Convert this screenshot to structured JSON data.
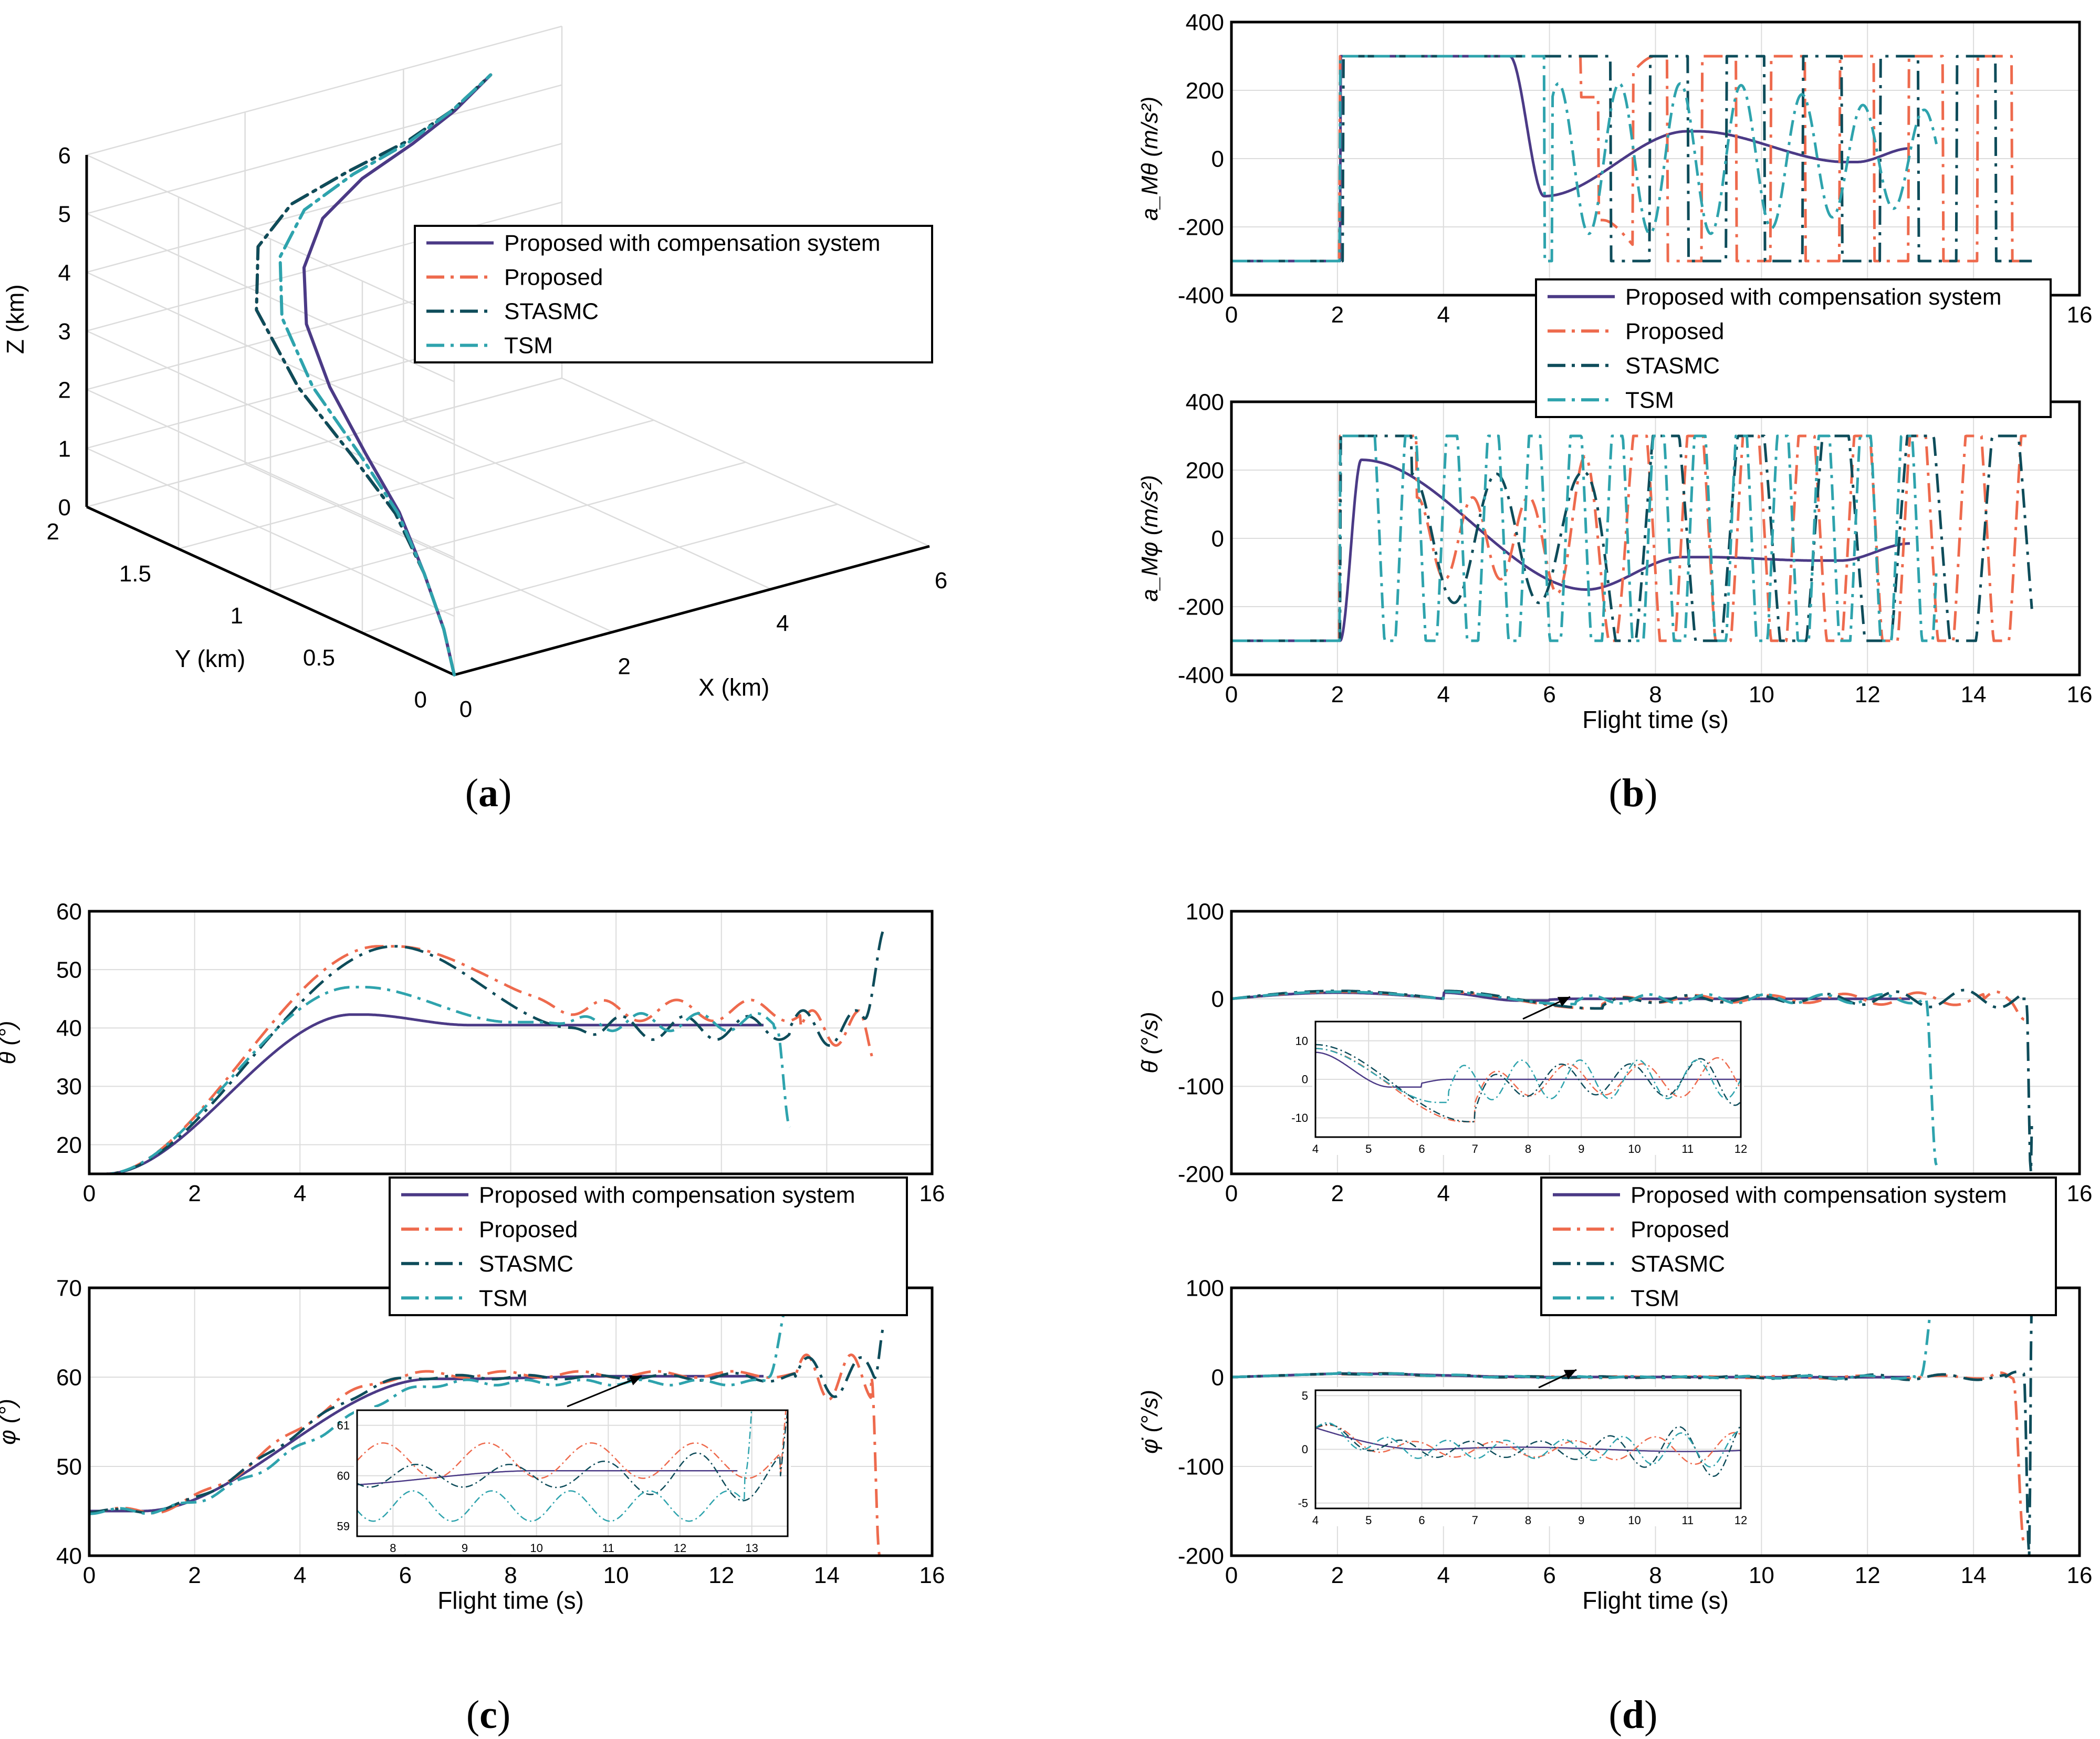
{
  "colors": {
    "comp": "#4b3a86",
    "proposed": "#ee6a4d",
    "stasmc": "#0e4c5a",
    "tsm": "#2ea3ad",
    "axis": "#000000",
    "grid": "#dcdcdc",
    "background": "#ffffff"
  },
  "legend": {
    "entries": [
      {
        "label": "Proposed with compensation system",
        "color": "#4b3a86",
        "dash": "solid"
      },
      {
        "label": "Proposed",
        "color": "#ee6a4d",
        "dash": "dashdot"
      },
      {
        "label": "STASMC",
        "color": "#0e4c5a",
        "dash": "dashdot"
      },
      {
        "label": "TSM",
        "color": "#2ea3ad",
        "dash": "dashdot"
      }
    ]
  },
  "captions": {
    "a": "a",
    "b": "b",
    "c": "c",
    "d": "d"
  },
  "chart_data": [
    {
      "id": "a",
      "type": "line3d",
      "title": "",
      "xlabel": "X (km)",
      "ylabel": "Y (km)",
      "zlabel": "Z (km)",
      "xlim": [
        0,
        6
      ],
      "ylim": [
        0,
        2
      ],
      "zlim": [
        0,
        6
      ],
      "xticks": [
        "0",
        "2",
        "4",
        "6"
      ],
      "yticks": [
        "0",
        "0.5",
        "1",
        "1.5",
        "2"
      ],
      "zticks": [
        "0",
        "1",
        "2",
        "3",
        "4",
        "5",
        "6"
      ],
      "series": [
        {
          "name": "Proposed with compensation system",
          "x": [
            0,
            0.1,
            0.2,
            0.35,
            0.5,
            0.75,
            1.15,
            1.7,
            2.4,
            3.2,
            4.0,
            4.6,
            5.1
          ],
          "y": [
            0,
            0.1,
            0.25,
            0.45,
            0.7,
            1.0,
            1.3,
            1.55,
            1.75,
            1.88,
            1.95,
            1.98,
            2.0
          ],
          "z": [
            0,
            0.6,
            1.3,
            2.0,
            2.6,
            3.2,
            3.7,
            4.1,
            4.4,
            4.6,
            4.8,
            5.1,
            5.5
          ]
        },
        {
          "name": "Proposed",
          "x": [
            0,
            0.1,
            0.2,
            0.3,
            0.45,
            0.7,
            1.1,
            1.7,
            2.4,
            3.2,
            4.0,
            4.6,
            5.1
          ],
          "y": [
            0,
            0.1,
            0.25,
            0.45,
            0.75,
            1.15,
            1.55,
            1.8,
            1.92,
            1.96,
            1.98,
            1.99,
            2.0
          ],
          "z": [
            0,
            0.6,
            1.3,
            2.0,
            2.5,
            3.0,
            3.6,
            4.1,
            4.4,
            4.6,
            4.8,
            5.1,
            5.5
          ]
        },
        {
          "name": "STASMC",
          "x": [
            0,
            0.1,
            0.2,
            0.3,
            0.45,
            0.7,
            1.1,
            1.7,
            2.4,
            3.2,
            4.0,
            4.6,
            5.1
          ],
          "y": [
            0,
            0.1,
            0.25,
            0.45,
            0.75,
            1.15,
            1.55,
            1.8,
            1.92,
            1.96,
            1.98,
            1.99,
            2.0
          ],
          "z": [
            0,
            0.6,
            1.3,
            2.0,
            2.5,
            3.0,
            3.6,
            4.1,
            4.4,
            4.6,
            4.8,
            5.1,
            5.5
          ]
        },
        {
          "name": "TSM",
          "x": [
            0,
            0.1,
            0.2,
            0.33,
            0.48,
            0.72,
            1.12,
            1.7,
            2.4,
            3.2,
            4.0,
            4.6,
            5.1
          ],
          "y": [
            0,
            0.1,
            0.25,
            0.45,
            0.72,
            1.08,
            1.42,
            1.68,
            1.85,
            1.93,
            1.97,
            1.99,
            2.0
          ],
          "z": [
            0,
            0.6,
            1.3,
            2.0,
            2.55,
            3.1,
            3.65,
            4.1,
            4.4,
            4.6,
            4.8,
            5.1,
            5.5
          ]
        }
      ]
    },
    {
      "id": "b1",
      "type": "line",
      "ylabel": "a_Mθ (m/s²)",
      "xlim": [
        0,
        16
      ],
      "ylim": [
        -400,
        400
      ],
      "xticks": [
        "0",
        "2",
        "4",
        "6",
        "8",
        "10",
        "12",
        "14",
        "16"
      ],
      "yticks": [
        "-400",
        "-200",
        "0",
        "200",
        "400"
      ],
      "series": [
        {
          "name": "Proposed with compensation system",
          "t_end": 12.8,
          "kind": "b1_comp"
        },
        {
          "name": "Proposed",
          "t_end": 15.0,
          "kind": "b1_prop"
        },
        {
          "name": "STASMC",
          "t_end": 15.1,
          "kind": "b1_sta"
        },
        {
          "name": "TSM",
          "t_end": 13.3,
          "kind": "b1_tsm"
        }
      ]
    },
    {
      "id": "b2",
      "type": "line",
      "ylabel": "a_Mφ (m/s²)",
      "xlabel": "Flight time (s)",
      "xlim": [
        0,
        16
      ],
      "ylim": [
        -400,
        400
      ],
      "xticks": [
        "0",
        "2",
        "4",
        "6",
        "8",
        "10",
        "12",
        "14",
        "16"
      ],
      "yticks": [
        "-400",
        "-200",
        "0",
        "200",
        "400"
      ],
      "series": [
        {
          "name": "Proposed with compensation system",
          "t_end": 12.8,
          "kind": "b2_comp"
        },
        {
          "name": "Proposed",
          "t_end": 15.0,
          "kind": "b2_prop"
        },
        {
          "name": "STASMC",
          "t_end": 15.1,
          "kind": "b2_sta"
        },
        {
          "name": "TSM",
          "t_end": 13.3,
          "kind": "b2_tsm"
        }
      ]
    },
    {
      "id": "c1",
      "type": "line",
      "ylabel": "θ (°)",
      "xlim": [
        0,
        16
      ],
      "ylim": [
        15,
        60
      ],
      "xticks": [
        "0",
        "2",
        "4",
        "6",
        "8",
        "10",
        "12",
        "14",
        "16"
      ],
      "yticks": [
        "20",
        "30",
        "40",
        "50",
        "60"
      ],
      "series": [
        {
          "name": "Proposed with compensation system",
          "t_end": 12.8,
          "kind": "c1_comp"
        },
        {
          "name": "Proposed",
          "t_end": 14.9,
          "kind": "c1_prop"
        },
        {
          "name": "STASMC",
          "t_end": 15.1,
          "kind": "c1_sta"
        },
        {
          "name": "TSM",
          "t_end": 13.3,
          "kind": "c1_tsm"
        }
      ]
    },
    {
      "id": "c2",
      "type": "line",
      "ylabel": "φ (°)",
      "xlabel": "Flight time (s)",
      "xlim": [
        0,
        16
      ],
      "ylim": [
        40,
        70
      ],
      "xticks": [
        "0",
        "2",
        "4",
        "6",
        "8",
        "10",
        "12",
        "14",
        "16"
      ],
      "yticks": [
        "40",
        "50",
        "60",
        "70"
      ],
      "inset": {
        "xlim": [
          7.5,
          13.5
        ],
        "ylim": [
          58.8,
          61.3
        ],
        "xticks": [
          "8",
          "9",
          "10",
          "11",
          "12",
          "13"
        ],
        "yticks": [
          "59",
          "60",
          "61"
        ]
      },
      "series": [
        {
          "name": "Proposed with compensation system",
          "t_end": 12.8,
          "kind": "c2_comp"
        },
        {
          "name": "Proposed",
          "t_end": 15.0,
          "kind": "c2_prop"
        },
        {
          "name": "STASMC",
          "t_end": 15.1,
          "kind": "c2_sta"
        },
        {
          "name": "TSM",
          "t_end": 13.3,
          "kind": "c2_tsm"
        }
      ]
    },
    {
      "id": "d1",
      "type": "line",
      "ylabel": "θ̇ (°/s)",
      "xlim": [
        0,
        16
      ],
      "ylim": [
        -200,
        100
      ],
      "xticks": [
        "0",
        "2",
        "4",
        "6",
        "8",
        "10",
        "12",
        "14",
        "16"
      ],
      "yticks": [
        "-200",
        "-100",
        "0",
        "100"
      ],
      "inset": {
        "xlim": [
          4,
          12
        ],
        "ylim": [
          -15,
          15
        ],
        "xticks": [
          "4",
          "5",
          "6",
          "7",
          "8",
          "9",
          "10",
          "11",
          "12"
        ],
        "yticks": [
          "-10",
          "0",
          "10"
        ]
      },
      "series": [
        {
          "name": "Proposed with compensation system",
          "t_end": 12.8,
          "kind": "d1_comp"
        },
        {
          "name": "Proposed",
          "t_end": 15.0,
          "kind": "d1_prop"
        },
        {
          "name": "STASMC",
          "t_end": 15.1,
          "kind": "d1_sta"
        },
        {
          "name": "TSM",
          "t_end": 13.3,
          "kind": "d1_tsm"
        }
      ]
    },
    {
      "id": "d2",
      "type": "line",
      "ylabel": "φ̇ (°/s)",
      "xlabel": "Flight time (s)",
      "xlim": [
        0,
        16
      ],
      "ylim": [
        -200,
        100
      ],
      "xticks": [
        "0",
        "2",
        "4",
        "6",
        "8",
        "10",
        "12",
        "14",
        "16"
      ],
      "yticks": [
        "-200",
        "-100",
        "0",
        "100"
      ],
      "inset": {
        "xlim": [
          4,
          12
        ],
        "ylim": [
          -5.5,
          5.5
        ],
        "xticks": [
          "4",
          "5",
          "6",
          "7",
          "8",
          "9",
          "10",
          "11",
          "12"
        ],
        "yticks": [
          "-5",
          "0",
          "5"
        ]
      },
      "series": [
        {
          "name": "Proposed with compensation system",
          "t_end": 12.8,
          "kind": "d2_comp"
        },
        {
          "name": "Proposed",
          "t_end": 15.0,
          "kind": "d2_prop"
        },
        {
          "name": "STASMC",
          "t_end": 15.1,
          "kind": "d2_sta"
        },
        {
          "name": "TSM",
          "t_end": 13.3,
          "kind": "d2_tsm"
        }
      ]
    }
  ]
}
